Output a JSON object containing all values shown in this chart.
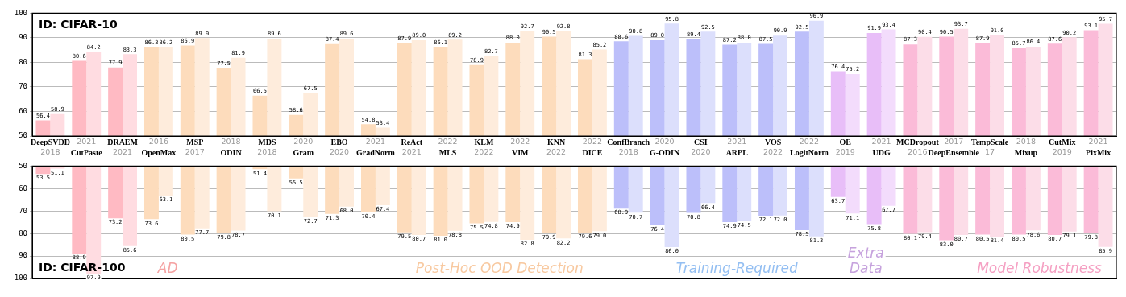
{
  "chart_data": [
    {
      "type": "bar",
      "title": "ID: CIFAR-10",
      "categories": [
        "DeepSVDD\n2018",
        "2021\nCutPaste",
        "DRAEM\n2021",
        "2016\nOpenMax",
        "MSP\n2017",
        "2018\nODIN",
        "MDS\n2018",
        "2020\nGram",
        "EBO\n2020",
        "2021\nGradNorm",
        "ReAct\n2021",
        "2022\nMLS",
        "KLM\n2022",
        "2022\nVIM",
        "KNN\n2022",
        "2022\nDICE",
        "ConfBranch\n2018",
        "2020\nG-ODIN",
        "CSI\n2020",
        "2021\nARPL",
        "VOS\n2022",
        "2022\nLogitNorm",
        "OE\n2019",
        "2021\nUDG",
        "MCDropout\n2016",
        "2017\nDeepEnsemble",
        "TempScale\n17",
        "2018\nMixup",
        "CutMix\n2019",
        "2021\nPixMix"
      ],
      "series": [
        {
          "colors": [
            "#ffbac3",
            "#ffbac3",
            "#ffbac3",
            "#fddcbc",
            "#fddcbc",
            "#fddcbc",
            "#fddcbc",
            "#fddcbc",
            "#fddcbc",
            "#fddcbc",
            "#fddcbc",
            "#fddcbc",
            "#fddcbc",
            "#fddcbc",
            "#fddcbc",
            "#fddcbc",
            "#bcbffa",
            "#bcbffa",
            "#bcbffa",
            "#bcbffa",
            "#bcbffa",
            "#bcbffa",
            "#e8bef8",
            "#e8bef8",
            "#fbbbd8",
            "#fbbbd8",
            "#fbbbd8",
            "#fbbbd8",
            "#fbbbd8",
            "#fbbbd8"
          ],
          "values": [
            56.4,
            80.6,
            77.9,
            86.3,
            86.9,
            77.5,
            66.5,
            58.6,
            87.4,
            54.8,
            87.9,
            86.1,
            78.9,
            88.0,
            90.5,
            81.3,
            88.6,
            89.0,
            89.4,
            87.2,
            87.5,
            92.5,
            76.4,
            91.9,
            87.3,
            90.5,
            87.9,
            85.7,
            87.6,
            93.1
          ],
          "value_labels": [
            "56.4",
            "80.6",
            "77.9",
            "86.3",
            "86.9",
            "77.5",
            "66.5",
            "58.6",
            "87.4",
            "54.8",
            "87.9",
            "86.1",
            "78.9",
            "88.0",
            "90.5",
            "81.3",
            "88.6",
            "89.0",
            "89.4",
            "87.2",
            "87.5",
            "92.5",
            "76.4",
            "91.9",
            "87.3",
            "90.5",
            "87.9",
            "85.7",
            "87.6",
            "93.1"
          ]
        },
        {
          "colors": [
            "#ffdce1",
            "#ffdce1",
            "#ffdce1",
            "#feecdc",
            "#feecdc",
            "#feecdc",
            "#feecdc",
            "#feecdc",
            "#feecdc",
            "#feecdc",
            "#feecdc",
            "#feecdc",
            "#feecdc",
            "#feecdc",
            "#feecdc",
            "#feecdc",
            "#dcdffc",
            "#dcdffc",
            "#dcdffc",
            "#dcdffc",
            "#dcdffc",
            "#dcdffc",
            "#f3dcfc",
            "#f3dcfc",
            "#fcdde8",
            "#fcdde8",
            "#fcdde8",
            "#fcdde8",
            "#fcdde8",
            "#fcdde8"
          ],
          "values": [
            58.9,
            84.2,
            83.3,
            86.2,
            89.9,
            81.9,
            89.6,
            67.5,
            89.6,
            53.4,
            89.0,
            89.2,
            82.7,
            92.7,
            92.8,
            85.2,
            90.8,
            95.8,
            92.5,
            88.0,
            90.9,
            96.9,
            75.2,
            93.4,
            90.4,
            93.7,
            91.0,
            86.4,
            90.2,
            95.7
          ],
          "value_labels": [
            "58.9",
            "84.2",
            "83.3",
            "86.2",
            "89.9",
            "81.9",
            "89.6",
            "67.5",
            "89.6",
            "53.4",
            "89.0",
            "89.2",
            "82.7",
            "92.7",
            "92.8",
            "85.2",
            "90.8",
            "95.8",
            "92.5",
            "88.0",
            "90.9",
            "96.9",
            "75.2",
            "93.4",
            "90.4",
            "93.7",
            "91.0",
            "86.4",
            "90.2",
            "95.7"
          ]
        }
      ],
      "ylim": [
        50,
        100
      ],
      "yticks": [
        50,
        60,
        70,
        80,
        90,
        100
      ],
      "grid": "y"
    },
    {
      "type": "bar",
      "title": "ID: CIFAR-100",
      "categories": [
        null,
        null,
        null,
        null,
        null,
        null,
        null,
        null,
        null,
        null,
        null,
        null,
        null,
        null,
        null,
        null,
        null,
        null,
        null,
        null,
        null,
        null,
        null,
        null,
        null,
        null,
        null,
        null,
        null,
        null
      ],
      "series": [
        {
          "colors": [
            "#ffbac3",
            "#ffbac3",
            "#ffbac3",
            "#fddcbc",
            "#fddcbc",
            "#fddcbc",
            "#fddcbc",
            "#fddcbc",
            "#fddcbc",
            "#fddcbc",
            "#fddcbc",
            "#fddcbc",
            "#fddcbc",
            "#fddcbc",
            "#fddcbc",
            "#fddcbc",
            "#bcbffa",
            "#bcbffa",
            "#bcbffa",
            "#bcbffa",
            "#bcbffa",
            "#bcbffa",
            "#e8bef8",
            "#e8bef8",
            "#fbbbd8",
            "#fbbbd8",
            "#fbbbd8",
            "#fbbbd8",
            "#fbbbd8",
            "#fbbbd8"
          ],
          "values": [
            53.5,
            88.9,
            73.2,
            73.6,
            80.5,
            79.8,
            51.4,
            55.5,
            71.3,
            70.4,
            79.5,
            81.0,
            75.5,
            74.9,
            79.9,
            79.6,
            68.9,
            76.4,
            70.8,
            74.9,
            72.1,
            78.5,
            63.7,
            75.8,
            80.1,
            83.0,
            80.5,
            80.5,
            80.7,
            79.8
          ],
          "value_labels": [
            "53.5",
            "88.9",
            "73.2",
            "73.6",
            "80.5",
            "79.8",
            "51.4",
            "55.5",
            "71.3",
            "70.4",
            "79.5",
            "81.0",
            "75.5",
            "74.9",
            "79.9",
            "79.6",
            "68.9",
            "76.4",
            "70.8",
            "74.9",
            "72.1",
            "78.5",
            "63.7",
            "75.8",
            "80.1",
            "83.0",
            "80.5",
            "80.5",
            "80.7",
            "79.8"
          ]
        },
        {
          "colors": [
            "#ffdce1",
            "#ffdce1",
            "#ffdce1",
            "#feecdc",
            "#feecdc",
            "#feecdc",
            "#feecdc",
            "#feecdc",
            "#feecdc",
            "#feecdc",
            "#feecdc",
            "#feecdc",
            "#feecdc",
            "#feecdc",
            "#feecdc",
            "#feecdc",
            "#dcdffc",
            "#dcdffc",
            "#dcdffc",
            "#dcdffc",
            "#dcdffc",
            "#dcdffc",
            "#f3dcfc",
            "#f3dcfc",
            "#fcdde8",
            "#fcdde8",
            "#fcdde8",
            "#fcdde8",
            "#fcdde8",
            "#fcdde8"
          ],
          "values": [
            51.1,
            97.9,
            85.6,
            63.1,
            77.7,
            78.7,
            70.1,
            72.7,
            68.0,
            67.4,
            80.7,
            78.8,
            74.8,
            82.8,
            82.2,
            79.0,
            70.7,
            86.0,
            66.4,
            74.5,
            72.0,
            81.3,
            71.1,
            67.7,
            79.4,
            80.7,
            81.4,
            78.6,
            79.1,
            85.9
          ],
          "value_labels": [
            "51.1",
            "97.9",
            "85.6",
            "63.1",
            "77.7",
            "78.7",
            "70.1",
            "72.7",
            "68.0",
            "67.4",
            "80.7",
            "78.8",
            "74.8",
            "82.8",
            "82.2",
            "79.0",
            "70.7",
            "86.0",
            "66.4",
            "74.5",
            "72.0",
            "81.3",
            "71.1",
            "67.7",
            "79.4",
            "80.7",
            "81.4",
            "78.6",
            "79.1",
            "85.9"
          ]
        }
      ],
      "ylim": [
        100,
        50
      ],
      "yticks": [
        50,
        60,
        70,
        80,
        90,
        100
      ],
      "grid": "y",
      "tick_labels": "y",
      "annotations": [
        "AD",
        "Post-Hoc OOD Detection",
        "Training-Required",
        "Extra Data",
        "Model Robustness"
      ]
    }
  ]
}
